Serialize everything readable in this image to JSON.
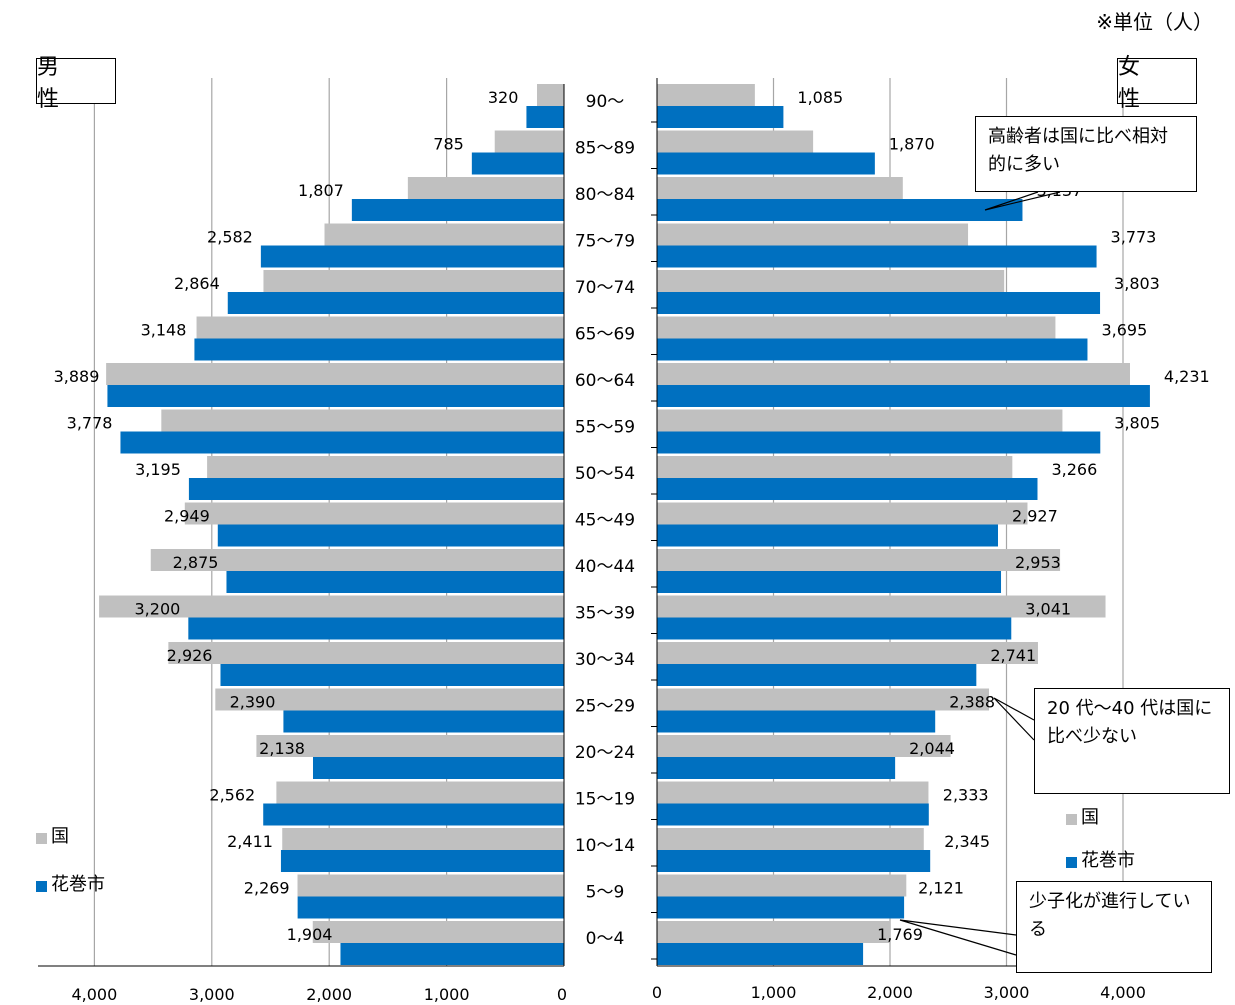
{
  "unit_label": "※単位（人）",
  "male_label": "男 性",
  "female_label": "女 性",
  "legend": {
    "national": "国",
    "city": "花巻市"
  },
  "colors": {
    "national": "#c0c0c0",
    "city": "#0070c0",
    "grid": "#a6a6a6"
  },
  "callouts": {
    "elderly": "高齢者は国に比べ相対的に多い",
    "twenties_forties": "20 代～40 代は国に比べ少ない",
    "declining_birthrate": "少子化が進行している"
  },
  "chart_data": {
    "type": "bar",
    "orientation": "horizontal-population-pyramid",
    "categories": [
      "90～",
      "85～89",
      "80～84",
      "75～79",
      "70～74",
      "65～69",
      "60～64",
      "55～59",
      "50～54",
      "45～49",
      "40～44",
      "35～39",
      "30～34",
      "25～29",
      "20～24",
      "15～19",
      "10～14",
      "5～9",
      "0～4"
    ],
    "male": {
      "series": [
        {
          "name": "国",
          "values": [
            230,
            590,
            1330,
            2040,
            2560,
            3130,
            3900,
            3430,
            3040,
            3230,
            3520,
            3960,
            3370,
            2970,
            2620,
            2450,
            2400,
            2270,
            2140
          ]
        },
        {
          "name": "花巻市",
          "values": [
            320,
            785,
            1807,
            2582,
            2864,
            3148,
            3889,
            3778,
            3195,
            2949,
            2875,
            3200,
            2926,
            2390,
            2138,
            2562,
            2411,
            2269,
            1904
          ]
        }
      ],
      "xlim": [
        4000,
        0
      ],
      "ticks": [
        "4,000",
        "3,000",
        "2,000",
        "1,000",
        "0"
      ],
      "data_labels": [
        "320",
        "785",
        "1,807",
        "2,582",
        "2,864",
        "3,148",
        "3,889",
        "3,778",
        "3,195",
        "2,949",
        "2,875",
        "3,200",
        "2,926",
        "2,390",
        "2,138",
        "2,562",
        "2,411",
        "2,269",
        "1,904"
      ]
    },
    "female": {
      "series": [
        {
          "name": "国",
          "values": [
            840,
            1340,
            2110,
            2670,
            2980,
            3420,
            4060,
            3480,
            3050,
            3180,
            3460,
            3850,
            3270,
            2850,
            2520,
            2330,
            2290,
            2140,
            2000
          ]
        },
        {
          "name": "花巻市",
          "values": [
            1085,
            1870,
            3137,
            3773,
            3803,
            3695,
            4231,
            3805,
            3266,
            2927,
            2953,
            3041,
            2741,
            2388,
            2044,
            2333,
            2345,
            2121,
            1769
          ]
        }
      ],
      "xlim": [
        0,
        4000
      ],
      "ticks": [
        "0",
        "1,000",
        "2,000",
        "3,000",
        "4,000"
      ],
      "data_labels": [
        "1,085",
        "1,870",
        "3,137",
        "3,773",
        "3,803",
        "3,695",
        "4,231",
        "3,805",
        "3,266",
        "2,927",
        "2,953",
        "3,041",
        "2,741",
        "2,388",
        "2,044",
        "2,333",
        "2,345",
        "2,121",
        "1,769"
      ]
    },
    "grid": true,
    "legend_position": "bottom-left and bottom-right"
  }
}
